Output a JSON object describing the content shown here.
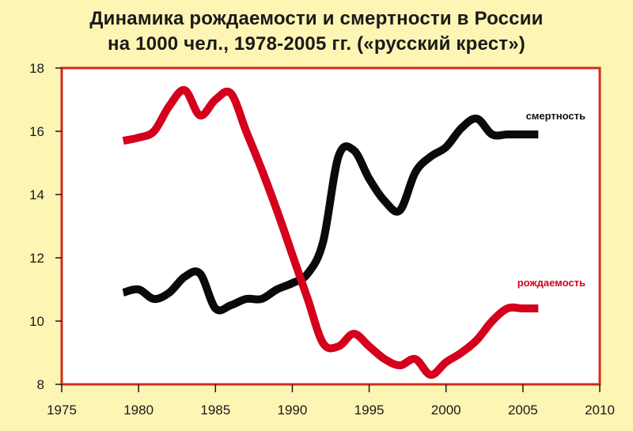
{
  "chart_data": {
    "type": "line",
    "title": "Динамика рождаемости и смертности в России",
    "subtitle": "на 1000 чел., 1978-2005 гг. («русский крест»)",
    "xlabel": "",
    "ylabel": "",
    "xlim": [
      1975,
      2010
    ],
    "ylim": [
      8,
      18
    ],
    "x_ticks": [
      "1975",
      "1980",
      "1985",
      "1990",
      "1995",
      "2000",
      "2005",
      "2010"
    ],
    "y_ticks": [
      "8",
      "10",
      "12",
      "14",
      "16",
      "18"
    ],
    "grid": false,
    "series": [
      {
        "name": "смертность",
        "color": "#0a0a0a",
        "x": [
          1979,
          1980,
          1981,
          1982,
          1983,
          1984,
          1985,
          1986,
          1987,
          1988,
          1989,
          1990,
          1991,
          1992,
          1993,
          1994,
          1995,
          1996,
          1997,
          1998,
          1999,
          2000,
          2001,
          2002,
          2003,
          2004,
          2005,
          2006
        ],
        "y": [
          10.9,
          11.0,
          10.7,
          10.9,
          11.4,
          11.5,
          10.4,
          10.5,
          10.7,
          10.7,
          11.0,
          11.2,
          11.5,
          12.5,
          15.2,
          15.4,
          14.5,
          13.8,
          13.5,
          14.7,
          15.2,
          15.5,
          16.1,
          16.4,
          15.9,
          15.9,
          15.9,
          15.9
        ]
      },
      {
        "name": "рождаемость",
        "color": "#d4001c",
        "x": [
          1979,
          1980,
          1981,
          1982,
          1983,
          1984,
          1985,
          1986,
          1987,
          1988,
          1989,
          1990,
          1991,
          1992,
          1993,
          1994,
          1995,
          1996,
          1997,
          1998,
          1999,
          2000,
          2001,
          2002,
          2003,
          2004,
          2005,
          2006
        ],
        "y": [
          15.7,
          15.8,
          16.0,
          16.8,
          17.3,
          16.5,
          17.0,
          17.2,
          16.0,
          14.8,
          13.5,
          12.1,
          10.7,
          9.3,
          9.2,
          9.6,
          9.2,
          8.8,
          8.6,
          8.8,
          8.3,
          8.7,
          9.0,
          9.4,
          10.0,
          10.4,
          10.4,
          10.4
        ]
      }
    ]
  }
}
